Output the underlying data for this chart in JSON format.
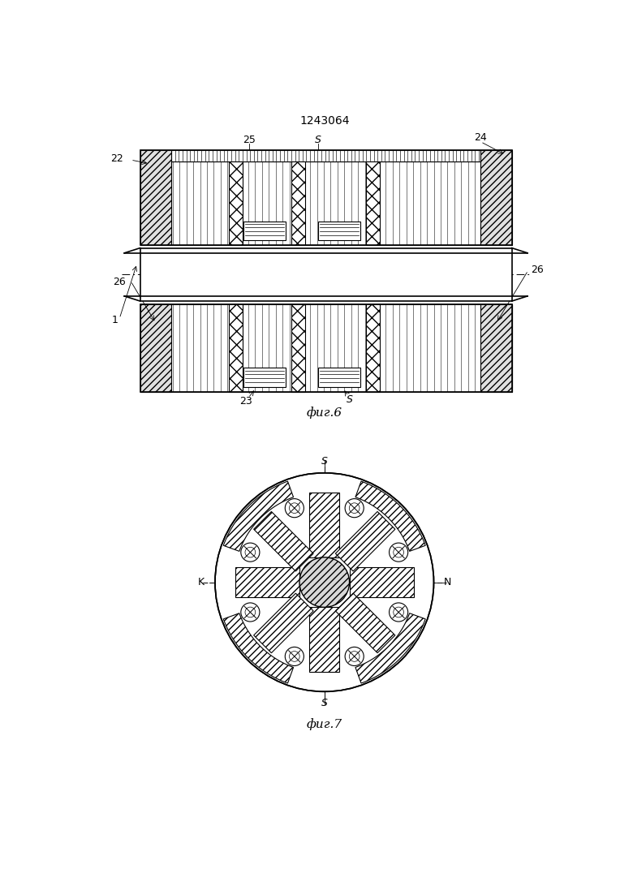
{
  "title": "1243064",
  "fig6_label": "фиг.6",
  "fig7_label": "фиг.7",
  "bg_color": "#ffffff"
}
